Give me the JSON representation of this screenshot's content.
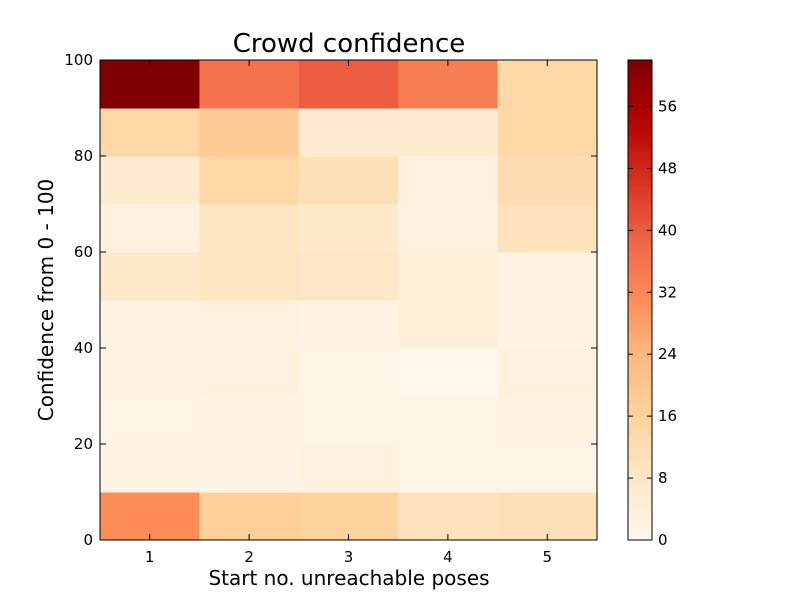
{
  "chart_data": {
    "type": "heatmap",
    "title": "Crowd confidence",
    "xlabel": "Start no. unreachable poses",
    "ylabel": "Confidence from 0 - 100",
    "x_categories": [
      "1",
      "2",
      "3",
      "4",
      "5"
    ],
    "y_bins": [
      [
        0,
        10
      ],
      [
        10,
        20
      ],
      [
        20,
        30
      ],
      [
        30,
        40
      ],
      [
        40,
        50
      ],
      [
        50,
        60
      ],
      [
        60,
        70
      ],
      [
        70,
        80
      ],
      [
        80,
        90
      ],
      [
        90,
        100
      ]
    ],
    "xlim": [
      0.5,
      5.5
    ],
    "ylim": [
      0,
      100
    ],
    "y_ticks": [
      0,
      20,
      40,
      60,
      80,
      100
    ],
    "colorbar": {
      "colormap": "OrRd",
      "range": [
        0,
        62
      ],
      "ticks": [
        0,
        8,
        16,
        24,
        32,
        40,
        48,
        56
      ]
    },
    "values": [
      [
        31,
        17,
        16,
        10,
        11
      ],
      [
        2,
        2,
        3,
        1,
        1
      ],
      [
        1,
        2,
        1,
        1,
        2
      ],
      [
        2,
        3,
        1,
        0,
        3
      ],
      [
        2,
        3,
        2,
        4,
        2
      ],
      [
        7,
        9,
        8,
        4,
        2
      ],
      [
        3,
        9,
        7,
        3,
        10
      ],
      [
        6,
        14,
        11,
        3,
        12
      ],
      [
        14,
        18,
        6,
        6,
        14
      ],
      [
        62,
        36,
        40,
        34,
        14
      ]
    ]
  }
}
